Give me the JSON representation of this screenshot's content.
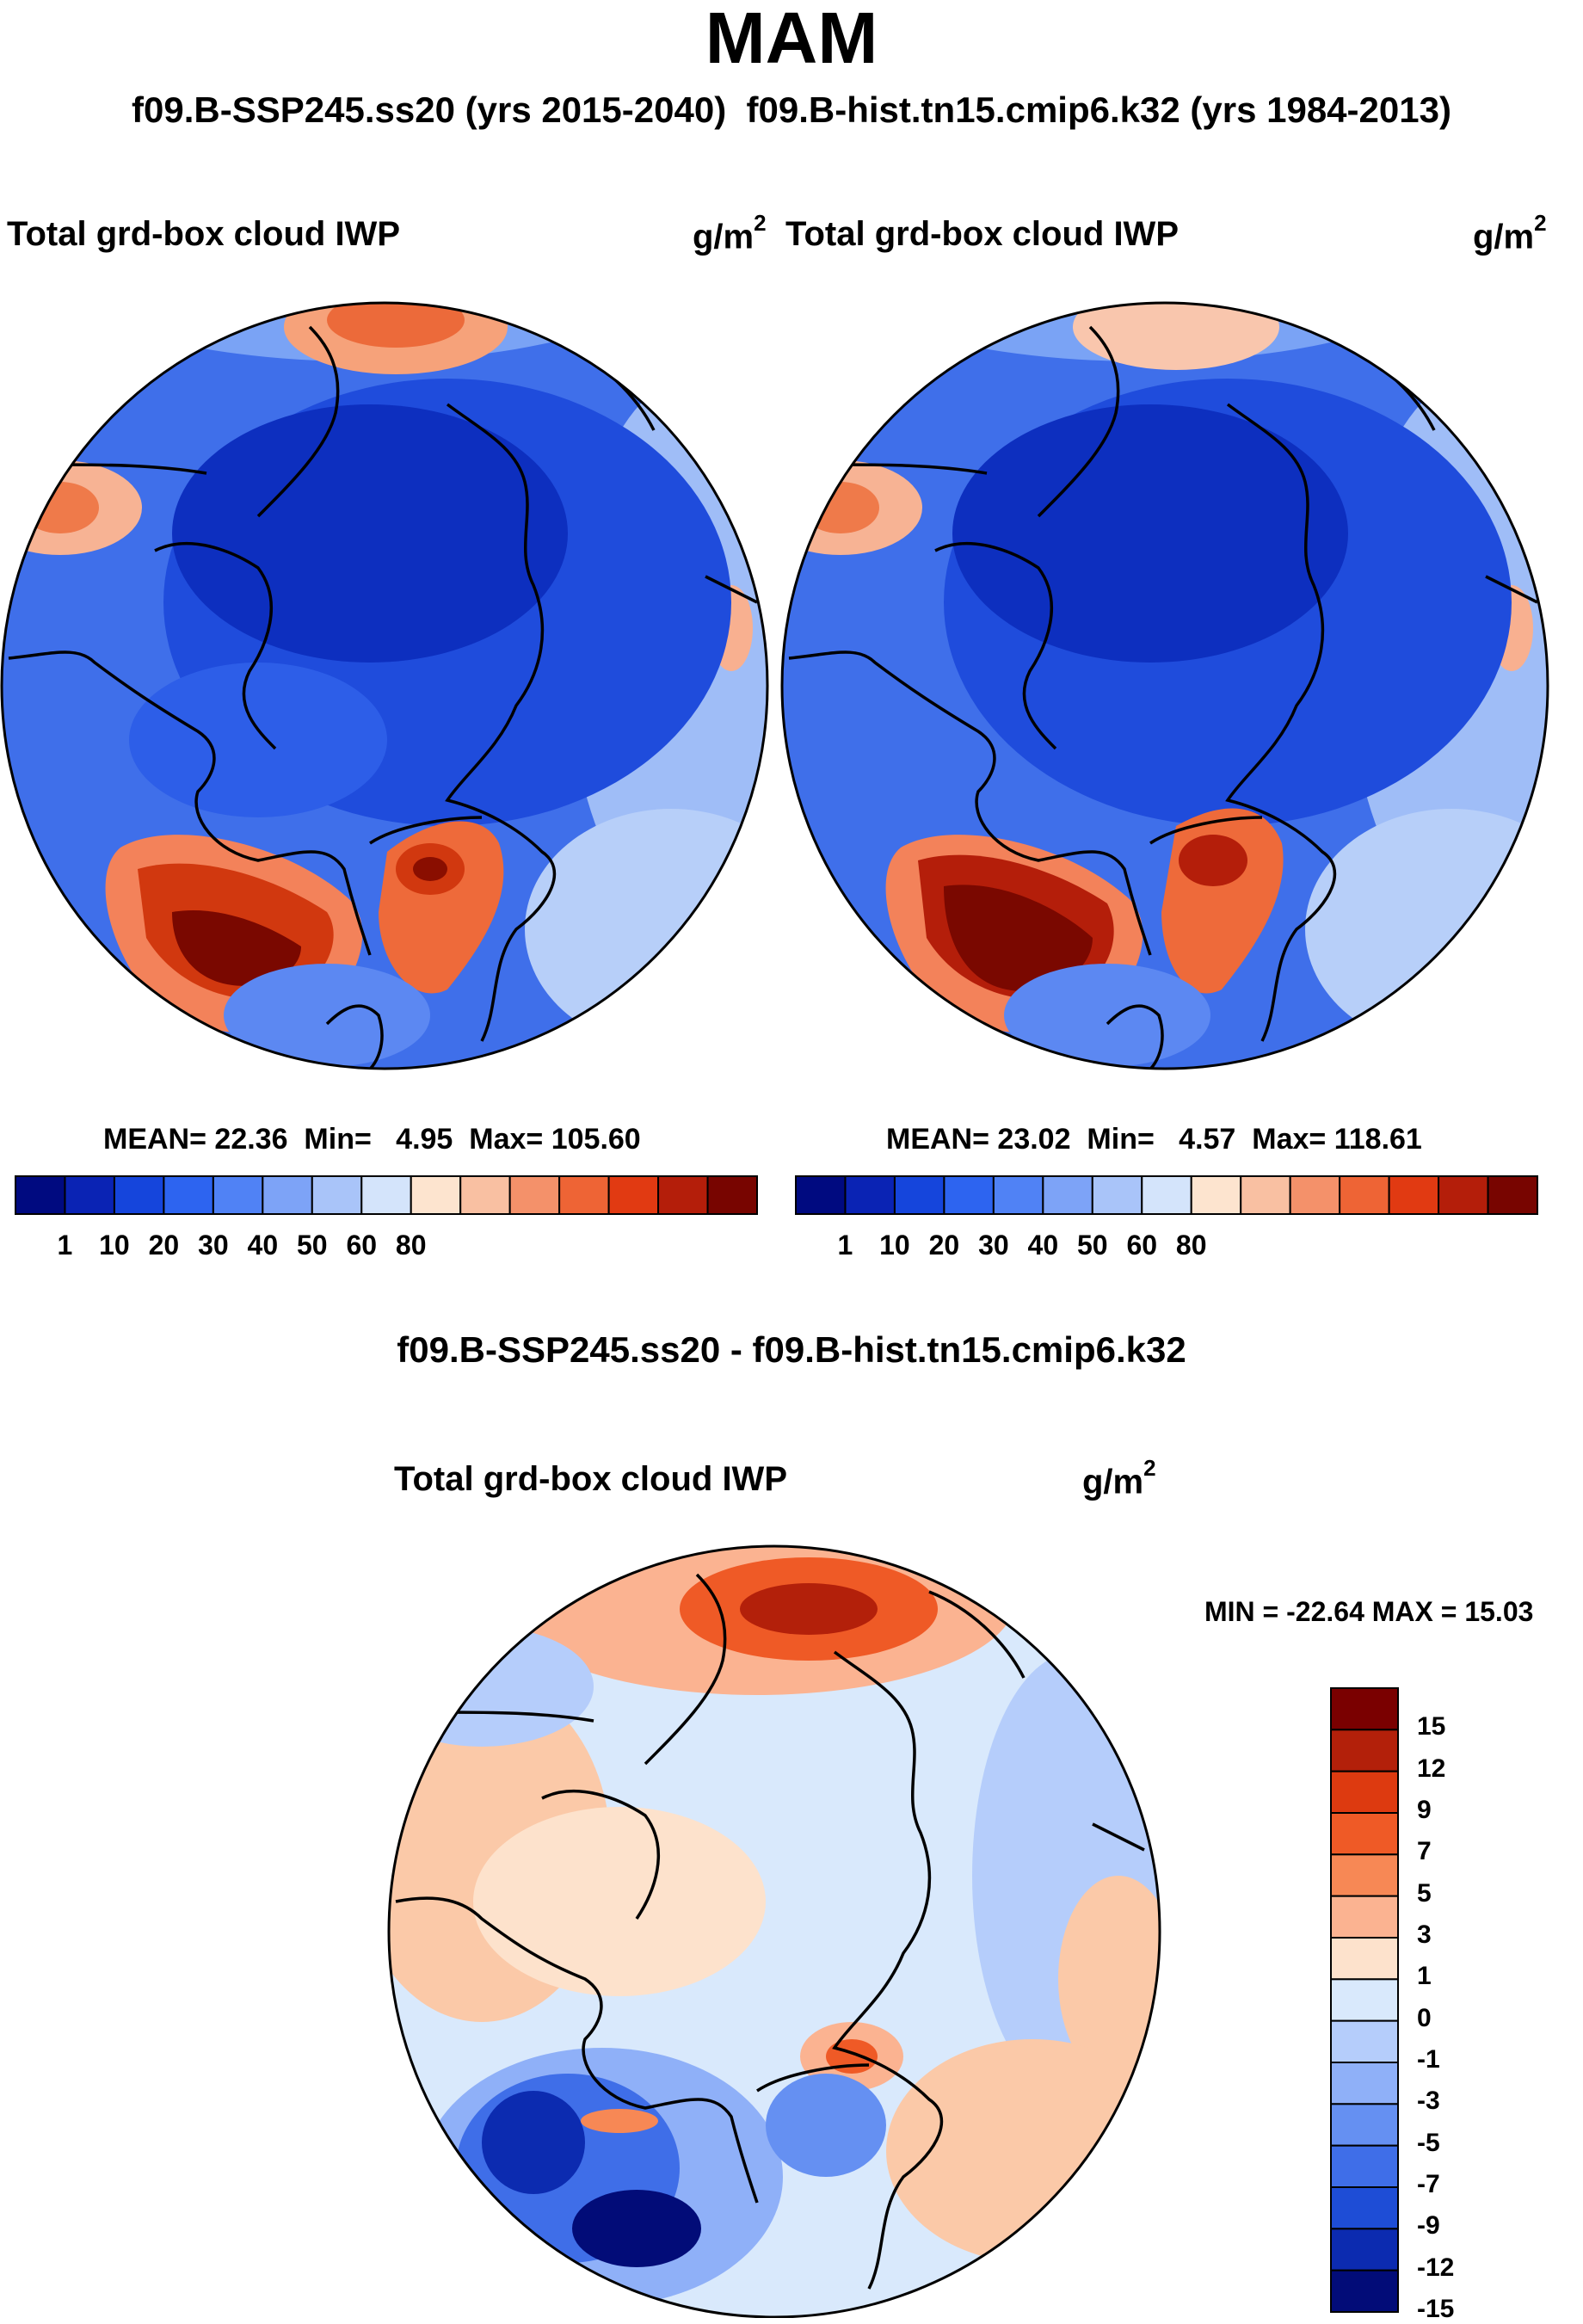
{
  "title": "MAM",
  "subtitle_left": "f09.B-SSP245.ss20 (yrs 2015-2040)",
  "subtitle_right": "f09.B-hist.tn15.cmip6.k32 (yrs 1984-2013)",
  "panels": [
    {
      "label": "Total grd-box cloud IWP",
      "unit_base": "g/m",
      "unit_exp": "2",
      "stats": {
        "mean_label": "MEAN=",
        "mean": "22.36",
        "min_label": "Min=",
        "min": "4.95",
        "max_label": "Max=",
        "max": "105.60"
      }
    },
    {
      "label": "Total grd-box cloud IWP",
      "unit_base": "g/m",
      "unit_exp": "2",
      "stats": {
        "mean_label": "MEAN=",
        "mean": "23.02",
        "min_label": "Min=",
        "min": "4.57",
        "max_label": "Max=",
        "max": "118.61"
      }
    }
  ],
  "colorbar": {
    "ticks": [
      "1",
      "10",
      "20",
      "30",
      "40",
      "50",
      "60",
      "80"
    ],
    "colors": [
      "#000a80",
      "#0a23b4",
      "#1545dc",
      "#2d64f0",
      "#5082f5",
      "#7da3f7",
      "#a9c4f9",
      "#d4e4fb",
      "#fde4cf",
      "#f9c0a2",
      "#f4916a",
      "#ee6435",
      "#e13a12",
      "#b41e0a",
      "#780500"
    ]
  },
  "diff": {
    "title": "f09.B-SSP245.ss20 - f09.B-hist.tn15.cmip6.k32",
    "label": "Total grd-box cloud IWP",
    "unit_base": "g/m",
    "unit_exp": "2",
    "minmax": "MIN = -22.64 MAX =  15.03",
    "ticks": [
      "15",
      "12",
      "9",
      "7",
      "5",
      "3",
      "1",
      "0",
      "-1",
      "-3",
      "-5",
      "-7",
      "-9",
      "-12",
      "-15"
    ],
    "colors": [
      "#7a0000",
      "#b3200a",
      "#dd3a10",
      "#ef5a26",
      "#f78855",
      "#fbb391",
      "#fde2cc",
      "#d9e9fc",
      "#b5cdfb",
      "#8fb0f8",
      "#6590f2",
      "#3f6ee8",
      "#1e4dd6",
      "#0c2bb0",
      "#020c78"
    ]
  }
}
